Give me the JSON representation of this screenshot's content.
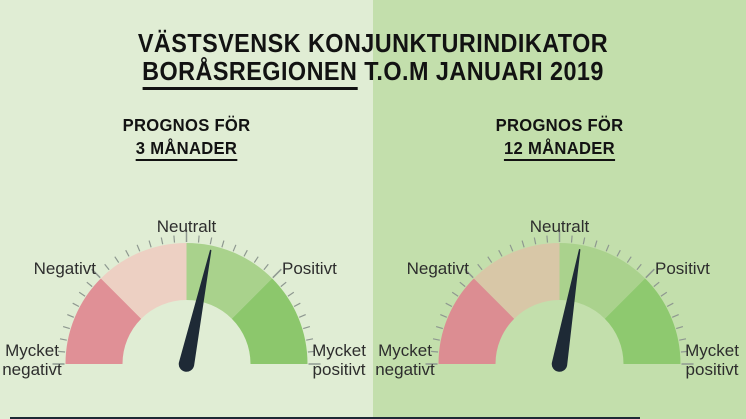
{
  "title": {
    "line1": "VÄSTSVENSK KONJUNKTURINDIKATOR",
    "line2_underlined": "BORÅSREGIONEN",
    "line2_rest": "T.O.M JANUARI 2019"
  },
  "colors": {
    "left_bg": "#e0edd4",
    "right_bg": "#c3dfac",
    "needle": "#1e2a36",
    "tick": "#8e9890",
    "footer_bar": "#1e2a36",
    "title_text": "#121212",
    "label_text": "#2d2d2d"
  },
  "chart_data": [
    {
      "type": "gauge",
      "subtitle_line1": "PROGNOS FÖR",
      "subtitle_line2": "3 MÅNADER",
      "axis_labels": [
        "Mycket negativt",
        "Negativt",
        "Neutralt",
        "Positivt",
        "Mycket positivt"
      ],
      "angle_range_deg": [
        -90,
        90
      ],
      "segments": [
        {
          "from_deg": -90,
          "to_deg": -45,
          "color": "#e09096"
        },
        {
          "from_deg": -45,
          "to_deg": 0,
          "color": "#edd0c3"
        },
        {
          "from_deg": 0,
          "to_deg": 45,
          "color": "#a9d28c"
        },
        {
          "from_deg": 45,
          "to_deg": 90,
          "color": "#8cc76c"
        }
      ],
      "ticks": {
        "minor_step_deg": 5.625,
        "major_step_deg": 45
      },
      "needle_angle_deg": 12
    },
    {
      "type": "gauge",
      "subtitle_line1": "PROGNOS FÖR",
      "subtitle_line2": "12 MÅNADER",
      "axis_labels": [
        "Mycket negativt",
        "Negativt",
        "Neutralt",
        "Positivt",
        "Mycket positivt"
      ],
      "angle_range_deg": [
        -90,
        90
      ],
      "segments": [
        {
          "from_deg": -90,
          "to_deg": -45,
          "color": "#dc8d92"
        },
        {
          "from_deg": -45,
          "to_deg": 0,
          "color": "#d8c7a7"
        },
        {
          "from_deg": 0,
          "to_deg": 45,
          "color": "#aad28d"
        },
        {
          "from_deg": 45,
          "to_deg": 90,
          "color": "#8ec96f"
        }
      ],
      "ticks": {
        "minor_step_deg": 5.625,
        "major_step_deg": 45
      },
      "needle_angle_deg": 10
    }
  ]
}
